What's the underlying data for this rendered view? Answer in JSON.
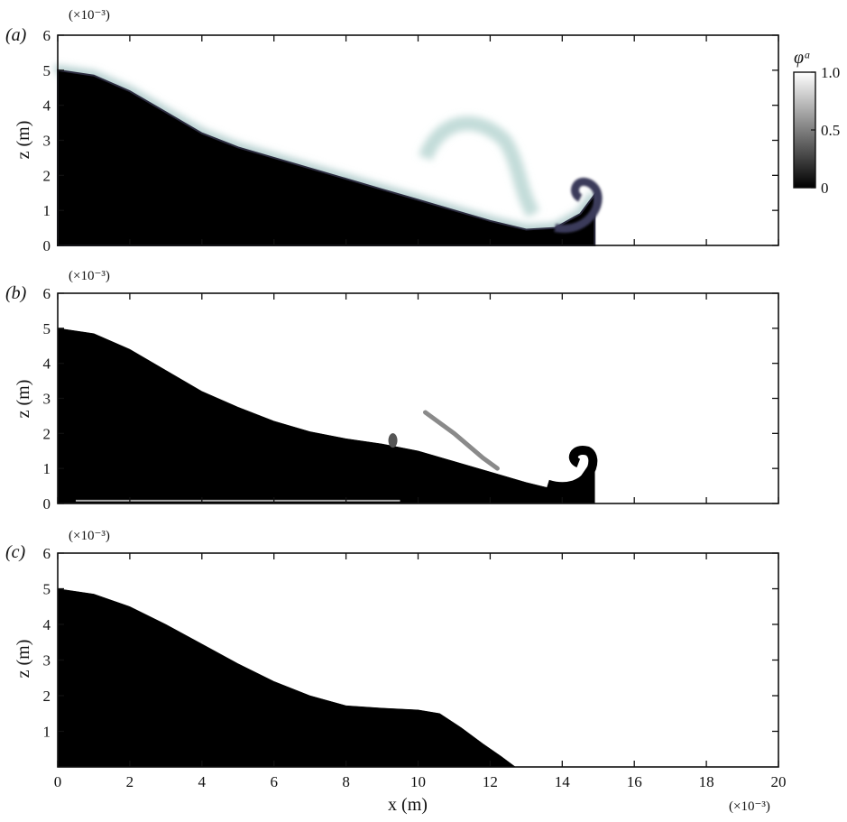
{
  "chart_data": [
    {
      "type": "heatmap",
      "panel_label": "(a)",
      "diffuse": true,
      "xlabel": "",
      "ylabel": "z (m)",
      "y_multiplier": "(×10⁻³)",
      "xlim": [
        0,
        20
      ],
      "ylim": [
        0,
        6
      ],
      "x_ticks": [
        0,
        2,
        4,
        6,
        8,
        10,
        12,
        14,
        16,
        18,
        20
      ],
      "y_ticks": [
        0,
        1,
        2,
        3,
        4,
        5,
        6
      ],
      "show_x_tick_labels": false,
      "interface_profile": [
        [
          0,
          5.0
        ],
        [
          1,
          4.85
        ],
        [
          2,
          4.4
        ],
        [
          3,
          3.8
        ],
        [
          4,
          3.2
        ],
        [
          5,
          2.8
        ],
        [
          6,
          2.5
        ],
        [
          7,
          2.2
        ],
        [
          8,
          1.9
        ],
        [
          9,
          1.6
        ],
        [
          10,
          1.3
        ],
        [
          11,
          1.0
        ],
        [
          12,
          0.7
        ],
        [
          13,
          0.45
        ],
        [
          13.8,
          0.5
        ],
        [
          14.5,
          0.9
        ],
        [
          14.9,
          1.45
        ]
      ],
      "colorbar": {
        "label": "φᵃ",
        "range": [
          0,
          1.0
        ],
        "ticks": [
          0,
          0.5,
          1.0
        ]
      }
    },
    {
      "type": "heatmap",
      "panel_label": "(b)",
      "diffuse": false,
      "xlabel": "",
      "ylabel": "z (m)",
      "y_multiplier": "(×10⁻³)",
      "xlim": [
        0,
        20
      ],
      "ylim": [
        0,
        6
      ],
      "x_ticks": [
        0,
        2,
        4,
        6,
        8,
        10,
        12,
        14,
        16,
        18,
        20
      ],
      "y_ticks": [
        0,
        1,
        2,
        3,
        4,
        5,
        6
      ],
      "show_x_tick_labels": false,
      "interface_profile": [
        [
          0,
          5.0
        ],
        [
          1,
          4.85
        ],
        [
          2,
          4.4
        ],
        [
          3,
          3.8
        ],
        [
          4,
          3.2
        ],
        [
          5,
          2.75
        ],
        [
          6,
          2.35
        ],
        [
          7,
          2.05
        ],
        [
          8,
          1.85
        ],
        [
          9,
          1.7
        ],
        [
          10,
          1.5
        ],
        [
          11,
          1.2
        ],
        [
          12,
          0.9
        ],
        [
          13,
          0.6
        ],
        [
          13.8,
          0.4
        ],
        [
          14.5,
          0.75
        ],
        [
          14.9,
          1.35
        ]
      ]
    },
    {
      "type": "heatmap",
      "panel_label": "(c)",
      "diffuse": false,
      "xlabel": "x (m)",
      "ylabel": "z (m)",
      "y_multiplier": "(×10⁻³)",
      "x_multiplier": "(×10⁻³)",
      "xlim": [
        0,
        20
      ],
      "ylim": [
        0,
        6
      ],
      "x_ticks": [
        0,
        2,
        4,
        6,
        8,
        10,
        12,
        14,
        16,
        18,
        20
      ],
      "y_ticks": [
        1,
        2,
        3,
        4,
        5,
        6
      ],
      "show_x_tick_labels": true,
      "interface_profile": [
        [
          0,
          5.0
        ],
        [
          1,
          4.85
        ],
        [
          2,
          4.5
        ],
        [
          3,
          4.0
        ],
        [
          4,
          3.45
        ],
        [
          5,
          2.9
        ],
        [
          6,
          2.4
        ],
        [
          7,
          2.0
        ],
        [
          8,
          1.72
        ],
        [
          9,
          1.65
        ],
        [
          10,
          1.6
        ],
        [
          10.6,
          1.5
        ],
        [
          11.2,
          1.1
        ],
        [
          11.8,
          0.65
        ],
        [
          12.3,
          0.3
        ],
        [
          12.7,
          0.0
        ]
      ]
    }
  ]
}
